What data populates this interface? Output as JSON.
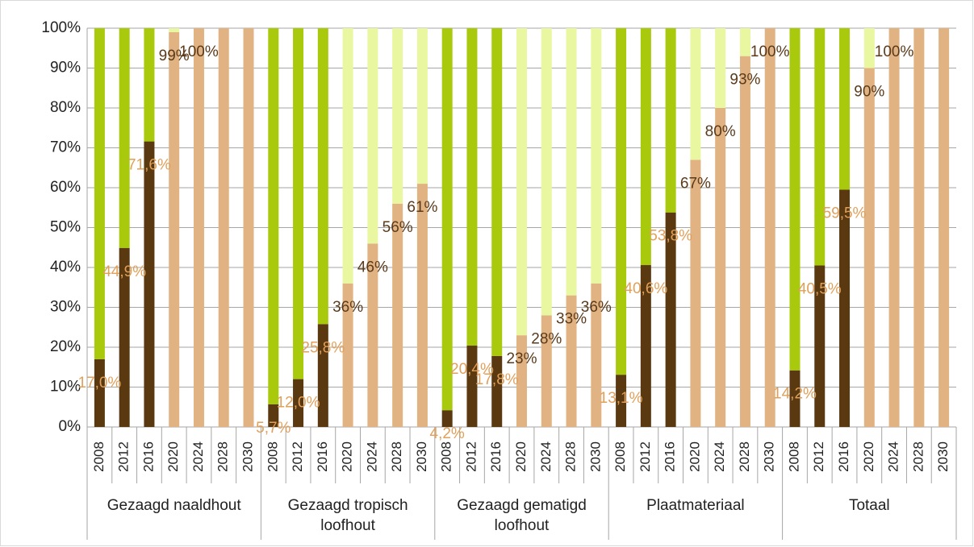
{
  "chart_data": {
    "type": "stacked_bar_100",
    "groups": [
      "Gezaagd naaldhout",
      "Gezaagd tropisch loofhout",
      "Gezaagd gematigd loofhout",
      "Plaatmateriaal",
      "Totaal"
    ],
    "categories": [
      "2008",
      "2012",
      "2016",
      "2020",
      "2024",
      "2028",
      "2030",
      "2008",
      "2012",
      "2016",
      "2020",
      "2024",
      "2028",
      "2030",
      "2008",
      "2012",
      "2016",
      "2020",
      "2024",
      "2028",
      "2030",
      "2008",
      "2012",
      "2016",
      "2020",
      "2024",
      "2028",
      "2030",
      "2008",
      "2012",
      "2016",
      "2020",
      "2024",
      "2028",
      "2030"
    ],
    "series": [
      {
        "color": "#5a3810",
        "values": [
          17.0,
          44.9,
          71.6,
          null,
          null,
          null,
          null,
          5.7,
          12.0,
          25.8,
          null,
          null,
          null,
          null,
          4.2,
          20.4,
          17.8,
          null,
          null,
          null,
          null,
          13.1,
          40.6,
          53.8,
          null,
          null,
          null,
          null,
          14.2,
          40.5,
          59.5,
          null,
          null,
          null,
          null
        ],
        "value_labels": [
          "17,0%",
          "44,9%",
          "71,6%",
          null,
          null,
          null,
          null,
          "5,7%",
          "12,0%",
          "25,8%",
          null,
          null,
          null,
          null,
          "4,2%",
          "20,4%",
          "17,8%",
          null,
          null,
          null,
          null,
          "13,1%",
          "40,6%",
          "53,8%",
          null,
          null,
          null,
          null,
          "14,2%",
          "40,5%",
          "59,5%",
          null,
          null,
          null,
          null
        ]
      },
      {
        "color": "#a9c90c",
        "values": [
          83.0,
          55.1,
          28.4,
          null,
          null,
          null,
          null,
          94.3,
          88.0,
          74.2,
          null,
          null,
          null,
          null,
          95.8,
          79.6,
          82.2,
          null,
          null,
          null,
          null,
          86.9,
          59.4,
          46.2,
          null,
          null,
          null,
          null,
          85.8,
          59.5,
          40.5,
          null,
          null,
          null,
          null
        ]
      },
      {
        "color": "#e2b382",
        "values": [
          null,
          null,
          null,
          99,
          100,
          100,
          100,
          null,
          null,
          null,
          36,
          46,
          56,
          61,
          null,
          null,
          null,
          23,
          28,
          33,
          36,
          null,
          null,
          null,
          67,
          80,
          93,
          100,
          null,
          null,
          null,
          90,
          100,
          100,
          100
        ],
        "value_labels": [
          null,
          null,
          null,
          "99%",
          "100%",
          null,
          null,
          null,
          null,
          null,
          "36%",
          "46%",
          "56%",
          "61%",
          null,
          null,
          null,
          "23%",
          "28%",
          "33%",
          "36%",
          null,
          null,
          null,
          "67%",
          "80%",
          "93%",
          "100%",
          null,
          null,
          null,
          "90%",
          "100%",
          null,
          null
        ]
      },
      {
        "color": "#e8f7a0",
        "values": [
          null,
          null,
          null,
          1,
          0,
          0,
          0,
          null,
          null,
          null,
          64,
          54,
          44,
          39,
          null,
          null,
          null,
          77,
          72,
          67,
          64,
          null,
          null,
          null,
          33,
          20,
          7,
          0,
          null,
          null,
          null,
          10,
          0,
          0,
          0
        ]
      }
    ],
    "label_colors": [
      "#e0a05a",
      "#5a3a1a"
    ],
    "ylim": [
      0,
      100
    ],
    "yticks": [
      {
        "value": 0,
        "label": "0%"
      },
      {
        "value": 10,
        "label": "10%"
      },
      {
        "value": 20,
        "label": "20%"
      },
      {
        "value": 30,
        "label": "30%"
      },
      {
        "value": 40,
        "label": "40%"
      },
      {
        "value": 50,
        "label": "50%"
      },
      {
        "value": 60,
        "label": "60%"
      },
      {
        "value": 70,
        "label": "70%"
      },
      {
        "value": 80,
        "label": "80%"
      },
      {
        "value": 90,
        "label": "90%"
      },
      {
        "value": 100,
        "label": "100%"
      }
    ],
    "grid": true
  }
}
